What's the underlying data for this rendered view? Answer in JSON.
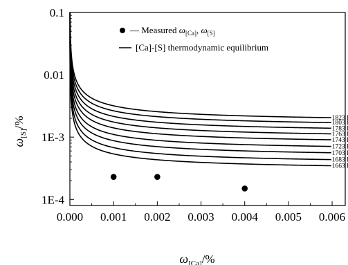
{
  "chart_data": {
    "type": "line",
    "title": "",
    "xlabel": {
      "main": "ω",
      "sub": "[Ca]",
      "unit": "/%"
    },
    "ylabel": {
      "main": "ω",
      "sub": "[S]",
      "unit": "/%"
    },
    "xlim": [
      0,
      0.0063
    ],
    "ylim": [
      8e-05,
      0.1
    ],
    "yscale": "log",
    "grid": false,
    "legend": {
      "placement": "top-center",
      "entries": [
        {
          "marker": "dot",
          "prefix": "— Measured ",
          "sym1": "ω",
          "sub1": "[Ca]",
          "sep": ", ",
          "sym2": "ω",
          "sub2": "[S]"
        },
        {
          "marker": "line",
          "text": "[Ca]-[S] thermodynamic equilibrium"
        }
      ]
    },
    "x_ticks": [
      "0.000",
      "0.001",
      "0.002",
      "0.003",
      "0.004",
      "0.005",
      "0.006"
    ],
    "x_tick_values": [
      0,
      0.001,
      0.002,
      0.003,
      0.004,
      0.005,
      0.006
    ],
    "y_ticks": [
      "0.1",
      "0.01",
      "1E-3",
      "1E-4"
    ],
    "y_tick_values": [
      0.1,
      0.01,
      0.001,
      0.0001
    ],
    "series": [
      {
        "name": "1823 K",
        "k": 8.6e-06,
        "ends": 0.00165
      },
      {
        "name": "1803 K",
        "k": 7.1e-06,
        "ends": 0.00138
      },
      {
        "name": "1783 K",
        "k": 5.8e-06,
        "ends": 0.00112
      },
      {
        "name": "1763 K",
        "k": 4.7e-06,
        "ends": 0.00091
      },
      {
        "name": "1743 K",
        "k": 3.8e-06,
        "ends": 0.00073
      },
      {
        "name": "1723 K",
        "k": 3e-06,
        "ends": 0.00057
      },
      {
        "name": "1703 K",
        "k": 2.4e-06,
        "ends": 0.00045
      },
      {
        "name": "1683 K",
        "k": 1.85e-06,
        "ends": 0.00035
      },
      {
        "name": "1663 K",
        "k": 1.45e-06,
        "ends": 0.00028
      }
    ],
    "measured": {
      "x": [
        0.001,
        0.002,
        0.004
      ],
      "y": [
        0.00023,
        0.00023,
        0.00015
      ]
    }
  }
}
